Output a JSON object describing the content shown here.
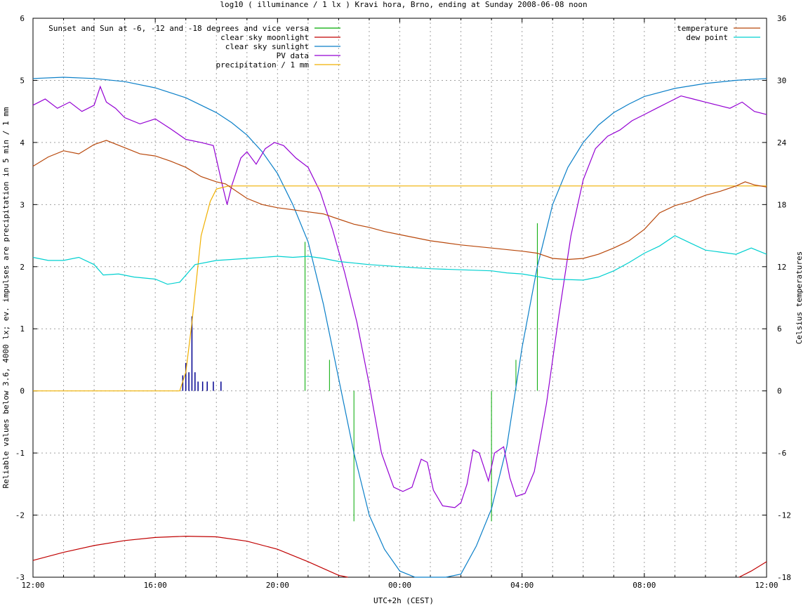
{
  "title": "log10 ( illuminance / 1 lx ) Kravi hora, Brno, ending at Sunday 2008-06-08 noon",
  "ylabel_left": "Reliable values below 3.6, 4000 lx; ev. impulses are precipitation in 5 min / 1 mm",
  "ylabel_right": "Celsius temperatures",
  "xlabel": "UTC+2h (CEST)",
  "colors": {
    "twilight": "#00aa00",
    "moonlight": "#c00000",
    "sunlight": "#0a7fc8",
    "pv": "#9400d3",
    "precip": "#f0b000",
    "temperature": "#b8470a",
    "dewpoint": "#00d0d0",
    "impulse": "#000090",
    "grid": "#a0a0a0"
  },
  "chart_data": {
    "type": "line",
    "x_unit": "hours since 2008-06-07 12:00 CEST",
    "xlim": [
      0,
      24
    ],
    "ylim_left": [
      -3,
      6
    ],
    "ylim_right": [
      -18,
      36
    ],
    "x_ticks": [
      {
        "v": 0,
        "label": "12:00"
      },
      {
        "v": 4,
        "label": "16:00"
      },
      {
        "v": 8,
        "label": "20:00"
      },
      {
        "v": 12,
        "label": "00:00"
      },
      {
        "v": 16,
        "label": "04:00"
      },
      {
        "v": 20,
        "label": "08:00"
      },
      {
        "v": 24,
        "label": "12:00"
      }
    ],
    "y_ticks_left": [
      -3,
      -2,
      -1,
      0,
      1,
      2,
      3,
      4,
      5,
      6
    ],
    "y_ticks_right": [
      -18,
      -12,
      -6,
      0,
      6,
      12,
      18,
      24,
      30,
      36
    ],
    "grid": true,
    "legend_left": [
      {
        "label": "Sunset and Sun at -6, -12 and -18 degrees and vice versa",
        "key": "twilight"
      },
      {
        "label": "clear sky moonlight",
        "key": "moonlight"
      },
      {
        "label": "clear sky sunlight",
        "key": "sunlight"
      },
      {
        "label": "PV data",
        "key": "pv"
      },
      {
        "label": "precipitation / 1 mm",
        "key": "precip"
      }
    ],
    "legend_right": [
      {
        "label": "temperature",
        "key": "temperature"
      },
      {
        "label": "dew point",
        "key": "dewpoint"
      }
    ],
    "twilight_markers": [
      {
        "x": 8.9,
        "y": 2.4
      },
      {
        "x": 9.7,
        "y": 0.5
      },
      {
        "x": 10.5,
        "y": -2.1
      },
      {
        "x": 15.0,
        "y": -2.1
      },
      {
        "x": 15.8,
        "y": 0.5
      },
      {
        "x": 16.5,
        "y": 2.7
      }
    ],
    "precip_impulses": [
      {
        "x": 4.9,
        "y": 0.25
      },
      {
        "x": 5.0,
        "y": 0.45
      },
      {
        "x": 5.1,
        "y": 0.3
      },
      {
        "x": 5.2,
        "y": 1.2
      },
      {
        "x": 5.3,
        "y": 0.3
      },
      {
        "x": 5.4,
        "y": 0.15
      },
      {
        "x": 5.55,
        "y": 0.15
      },
      {
        "x": 5.7,
        "y": 0.15
      },
      {
        "x": 5.9,
        "y": 0.15
      },
      {
        "x": 6.15,
        "y": 0.15
      }
    ],
    "series": [
      {
        "key": "sunlight",
        "axis": "left",
        "points": [
          [
            0,
            5.03
          ],
          [
            1,
            5.05
          ],
          [
            2,
            5.03
          ],
          [
            3,
            4.98
          ],
          [
            4,
            4.88
          ],
          [
            5,
            4.72
          ],
          [
            6,
            4.48
          ],
          [
            6.5,
            4.32
          ],
          [
            7,
            4.12
          ],
          [
            7.5,
            3.85
          ],
          [
            8,
            3.5
          ],
          [
            8.5,
            3.0
          ],
          [
            9,
            2.4
          ],
          [
            9.5,
            1.4
          ],
          [
            10,
            0.2
          ],
          [
            10.5,
            -1.0
          ],
          [
            11,
            -2.0
          ],
          [
            11.5,
            -2.55
          ],
          [
            12,
            -2.9
          ],
          [
            12.5,
            -3.15
          ],
          [
            13,
            -3.3
          ],
          [
            13.5,
            -3.2
          ],
          [
            14,
            -2.95
          ],
          [
            14.5,
            -2.5
          ],
          [
            15,
            -1.9
          ],
          [
            15.5,
            -0.9
          ],
          [
            16,
            0.7
          ],
          [
            16.5,
            2.0
          ],
          [
            17,
            3.0
          ],
          [
            17.5,
            3.6
          ],
          [
            18,
            4.0
          ],
          [
            18.5,
            4.28
          ],
          [
            19,
            4.48
          ],
          [
            19.5,
            4.62
          ],
          [
            20,
            4.74
          ],
          [
            21,
            4.87
          ],
          [
            22,
            4.95
          ],
          [
            23,
            5.0
          ],
          [
            24,
            5.03
          ]
        ]
      },
      {
        "key": "moonlight",
        "axis": "left",
        "points": [
          [
            0,
            -2.73
          ],
          [
            1,
            -2.6
          ],
          [
            2,
            -2.49
          ],
          [
            3,
            -2.41
          ],
          [
            4,
            -2.36
          ],
          [
            5,
            -2.34
          ],
          [
            6,
            -2.35
          ],
          [
            7,
            -2.42
          ],
          [
            8,
            -2.55
          ],
          [
            9,
            -2.75
          ],
          [
            10,
            -2.97
          ],
          [
            10.3,
            -3.05
          ],
          [
            23.1,
            -3.05
          ],
          [
            23.5,
            -2.9
          ],
          [
            24,
            -2.75
          ]
        ]
      },
      {
        "key": "pv",
        "axis": "left",
        "points": [
          [
            0,
            4.6
          ],
          [
            0.4,
            4.7
          ],
          [
            0.8,
            4.55
          ],
          [
            1.2,
            4.65
          ],
          [
            1.6,
            4.5
          ],
          [
            2,
            4.6
          ],
          [
            2.2,
            4.9
          ],
          [
            2.4,
            4.65
          ],
          [
            2.7,
            4.55
          ],
          [
            3,
            4.4
          ],
          [
            3.5,
            4.3
          ],
          [
            4,
            4.38
          ],
          [
            4.5,
            4.22
          ],
          [
            5,
            4.05
          ],
          [
            5.5,
            4.0
          ],
          [
            5.9,
            3.95
          ],
          [
            6.2,
            3.3
          ],
          [
            6.35,
            3.0
          ],
          [
            6.5,
            3.3
          ],
          [
            6.8,
            3.75
          ],
          [
            7,
            3.85
          ],
          [
            7.3,
            3.65
          ],
          [
            7.6,
            3.9
          ],
          [
            7.9,
            4.0
          ],
          [
            8.2,
            3.95
          ],
          [
            8.6,
            3.75
          ],
          [
            9,
            3.6
          ],
          [
            9.4,
            3.2
          ],
          [
            9.8,
            2.6
          ],
          [
            10.2,
            1.9
          ],
          [
            10.6,
            1.1
          ],
          [
            11,
            0.1
          ],
          [
            11.4,
            -1.0
          ],
          [
            11.8,
            -1.55
          ],
          [
            12.1,
            -1.62
          ],
          [
            12.4,
            -1.55
          ],
          [
            12.7,
            -1.1
          ],
          [
            12.9,
            -1.15
          ],
          [
            13.1,
            -1.6
          ],
          [
            13.4,
            -1.85
          ],
          [
            13.8,
            -1.88
          ],
          [
            14.0,
            -1.8
          ],
          [
            14.2,
            -1.5
          ],
          [
            14.4,
            -0.95
          ],
          [
            14.6,
            -1.0
          ],
          [
            14.9,
            -1.45
          ],
          [
            15.1,
            -1.0
          ],
          [
            15.4,
            -0.9
          ],
          [
            15.6,
            -1.4
          ],
          [
            15.8,
            -1.7
          ],
          [
            16.1,
            -1.65
          ],
          [
            16.4,
            -1.3
          ],
          [
            16.8,
            -0.2
          ],
          [
            17.2,
            1.2
          ],
          [
            17.6,
            2.5
          ],
          [
            18,
            3.4
          ],
          [
            18.4,
            3.9
          ],
          [
            18.8,
            4.1
          ],
          [
            19.2,
            4.2
          ],
          [
            19.6,
            4.35
          ],
          [
            20,
            4.45
          ],
          [
            20.4,
            4.55
          ],
          [
            20.8,
            4.65
          ],
          [
            21.2,
            4.75
          ],
          [
            21.6,
            4.7
          ],
          [
            22,
            4.65
          ],
          [
            22.4,
            4.6
          ],
          [
            22.8,
            4.55
          ],
          [
            23.2,
            4.65
          ],
          [
            23.6,
            4.5
          ],
          [
            24,
            4.45
          ]
        ]
      },
      {
        "key": "precip",
        "axis": "left",
        "points": [
          [
            0,
            0
          ],
          [
            4.8,
            0
          ],
          [
            5.0,
            0.3
          ],
          [
            5.2,
            1.1
          ],
          [
            5.5,
            2.5
          ],
          [
            5.8,
            3.05
          ],
          [
            6.0,
            3.25
          ],
          [
            6.4,
            3.3
          ],
          [
            24,
            3.3
          ]
        ]
      },
      {
        "key": "temperature",
        "axis": "right",
        "points": [
          [
            0,
            21.7
          ],
          [
            0.5,
            22.6
          ],
          [
            1,
            23.2
          ],
          [
            1.5,
            22.9
          ],
          [
            2,
            23.8
          ],
          [
            2.4,
            24.2
          ],
          [
            3,
            23.5
          ],
          [
            3.5,
            22.9
          ],
          [
            4,
            22.7
          ],
          [
            4.5,
            22.2
          ],
          [
            5,
            21.6
          ],
          [
            5.5,
            20.7
          ],
          [
            6,
            20.2
          ],
          [
            6.3,
            20.0
          ],
          [
            7,
            18.6
          ],
          [
            7.5,
            18.0
          ],
          [
            8,
            17.7
          ],
          [
            8.5,
            17.5
          ],
          [
            9,
            17.3
          ],
          [
            9.5,
            17.1
          ],
          [
            10,
            16.6
          ],
          [
            10.5,
            16.1
          ],
          [
            11,
            15.8
          ],
          [
            11.5,
            15.4
          ],
          [
            12,
            15.1
          ],
          [
            13,
            14.5
          ],
          [
            14,
            14.1
          ],
          [
            15,
            13.8
          ],
          [
            16,
            13.5
          ],
          [
            16.5,
            13.3
          ],
          [
            17,
            12.8
          ],
          [
            17.5,
            12.7
          ],
          [
            18,
            12.8
          ],
          [
            18.5,
            13.2
          ],
          [
            19,
            13.8
          ],
          [
            19.5,
            14.5
          ],
          [
            20,
            15.6
          ],
          [
            20.5,
            17.2
          ],
          [
            21,
            17.9
          ],
          [
            21.5,
            18.3
          ],
          [
            22,
            18.9
          ],
          [
            22.5,
            19.3
          ],
          [
            23,
            19.8
          ],
          [
            23.3,
            20.2
          ],
          [
            23.6,
            19.9
          ],
          [
            24,
            19.7
          ]
        ]
      },
      {
        "key": "dewpoint",
        "axis": "right",
        "points": [
          [
            0,
            12.9
          ],
          [
            0.5,
            12.6
          ],
          [
            1,
            12.6
          ],
          [
            1.5,
            12.9
          ],
          [
            2,
            12.2
          ],
          [
            2.3,
            11.2
          ],
          [
            2.8,
            11.3
          ],
          [
            3.3,
            11.0
          ],
          [
            4,
            10.8
          ],
          [
            4.4,
            10.3
          ],
          [
            4.8,
            10.5
          ],
          [
            5.3,
            12.2
          ],
          [
            6,
            12.6
          ],
          [
            6.5,
            12.7
          ],
          [
            7,
            12.8
          ],
          [
            8,
            13.0
          ],
          [
            8.5,
            12.9
          ],
          [
            9,
            13.0
          ],
          [
            9.5,
            12.8
          ],
          [
            10,
            12.5
          ],
          [
            11,
            12.2
          ],
          [
            12,
            12.0
          ],
          [
            13,
            11.8
          ],
          [
            14,
            11.7
          ],
          [
            15,
            11.6
          ],
          [
            15.5,
            11.4
          ],
          [
            16,
            11.3
          ],
          [
            17,
            10.8
          ],
          [
            18,
            10.7
          ],
          [
            18.5,
            11.0
          ],
          [
            19,
            11.6
          ],
          [
            19.5,
            12.4
          ],
          [
            20,
            13.3
          ],
          [
            20.5,
            14.0
          ],
          [
            21,
            15.0
          ],
          [
            21.5,
            14.3
          ],
          [
            22,
            13.6
          ],
          [
            22.5,
            13.4
          ],
          [
            23,
            13.2
          ],
          [
            23.5,
            13.8
          ],
          [
            24,
            13.2
          ]
        ]
      }
    ]
  }
}
